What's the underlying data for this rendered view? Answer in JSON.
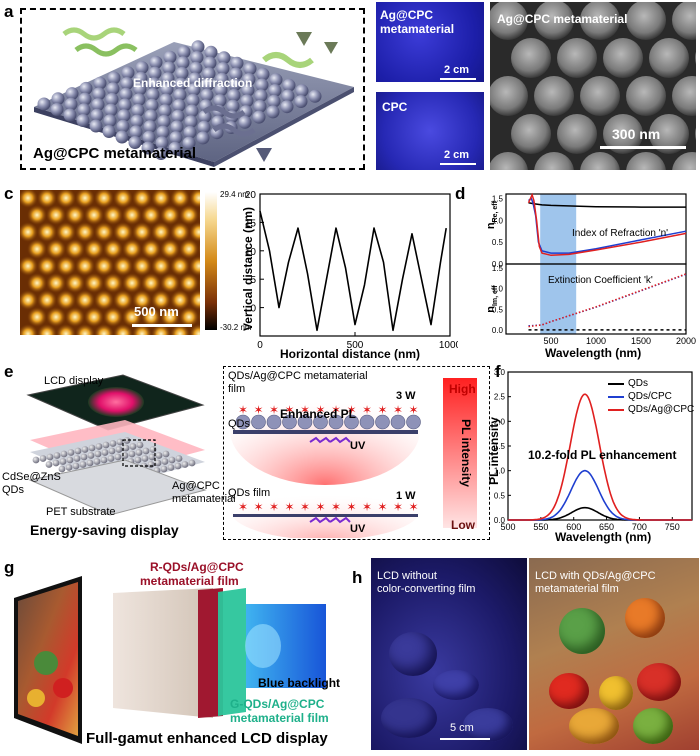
{
  "panels": {
    "a": {
      "label": "a",
      "caption": "Ag@CPC metamaterial",
      "note": "Enhanced diffraction"
    },
    "b": {
      "label": "b",
      "photo1_title": "Ag@CPC\nmetamaterial",
      "photo1_title_l1": "Ag@CPC",
      "photo1_title_l2": "metamaterial",
      "photo1_scale": "2 cm",
      "photo2_title": "CPC",
      "photo2_scale": "2 cm",
      "sem_title": "Ag@CPC metamaterial",
      "sem_scale": "300 nm"
    },
    "c": {
      "label": "c",
      "afm_scale": "500 nm",
      "colorbar_max": "29.4 nm",
      "colorbar_min": "-30.2 nm",
      "xlabel": "Horizontal distance (nm)",
      "ylabel": "Vertical distance (nm)"
    },
    "d": {
      "label": "d",
      "top_ylabel": "n",
      "top_ylabel_sub": "Re, eff",
      "bottom_ylabel": "n",
      "bottom_ylabel_sub": "Im, eff",
      "top_annot": "Index of Refraction 'n'",
      "bottom_annot": "Extinction Coefficient 'k'",
      "xlabel": "Wavelength (nm)"
    },
    "e": {
      "label": "e",
      "lcd": "LCD display",
      "qds_l1": "CdSe@ZnS",
      "qds_l2": "QDs",
      "agcpc_l1": "Ag@CPC",
      "agcpc_l2": "metamaterial",
      "pet": "PET substrate",
      "caption": "Energy-saving display",
      "film_title_l1": "QDs/Ag@CPC metamaterial",
      "film_title_l2": "film",
      "power_high": "3 W",
      "enhanced_pl": "Enhanced PL",
      "qds_label": "QDs",
      "uv1": "UV",
      "qds_film": "QDs film",
      "power_low": "1 W",
      "uv2": "UV",
      "bar_high": "High",
      "bar_low": "Low",
      "bar_title": "PL intensity"
    },
    "f": {
      "label": "f",
      "annot": "10.2-fold PL enhancement",
      "xlabel": "Wavelength (nm)",
      "ylabel": "PL intensity"
    },
    "g": {
      "label": "g",
      "r_film_l1": "R-QDs/Ag@CPC",
      "r_film_l2": "metamaterial film",
      "backlight": "Blue backlight",
      "g_film_l1": "G-QDs/Ag@CPC",
      "g_film_l2": "metamaterial film",
      "caption": "Full-gamut enhanced LCD display"
    },
    "h": {
      "label": "h",
      "left_l1": "LCD without",
      "left_l2": "color-converting film",
      "right_l1": "LCD with QDs/Ag@CPC",
      "right_l2": "metamaterial film",
      "scale": "5 cm"
    }
  },
  "chart_data": [
    {
      "panel": "c",
      "type": "line",
      "x": [
        0,
        50,
        100,
        150,
        200,
        250,
        300,
        350,
        400,
        450,
        500,
        550,
        600,
        650,
        700,
        750,
        800,
        850,
        900,
        950,
        980
      ],
      "y": [
        17,
        10,
        0,
        8,
        14,
        6,
        -4,
        5,
        14,
        7,
        -3,
        4,
        14,
        8,
        -4,
        5,
        13,
        5,
        -3,
        8,
        14
      ],
      "xlim": [
        0,
        1000
      ],
      "ylim": [
        -5,
        20
      ],
      "xticks": [
        0,
        500,
        1000
      ],
      "yticks": [
        0,
        5,
        10,
        15,
        20
      ],
      "xlabel": "Horizontal distance (nm)",
      "ylabel": "Vertical distance (nm)"
    },
    {
      "panel": "d-top",
      "type": "line",
      "xlim": [
        0,
        2000
      ],
      "ylim": [
        0.0,
        1.6
      ],
      "yticks": [
        0.0,
        0.5,
        1.0,
        1.5
      ],
      "xticks": [
        500,
        1000,
        1500,
        2000
      ],
      "highlight_band": [
        380,
        780
      ],
      "series": [
        {
          "color": "#000000",
          "x": [
            250,
            300,
            400,
            500,
            1000,
            1500,
            2000
          ],
          "y": [
            1.4,
            1.38,
            1.35,
            1.34,
            1.31,
            1.3,
            1.3
          ]
        },
        {
          "color": "#1f3fd0",
          "x": [
            250,
            280,
            300,
            330,
            360,
            400,
            500,
            700,
            1000,
            1500,
            2000
          ],
          "y": [
            1.45,
            1.5,
            1.4,
            1.1,
            0.5,
            0.3,
            0.25,
            0.25,
            0.35,
            0.55,
            0.75
          ]
        },
        {
          "color": "#e02020",
          "x": [
            250,
            290,
            310,
            340,
            370,
            400,
            500,
            700,
            1000,
            1500,
            2000
          ],
          "y": [
            1.4,
            1.58,
            1.45,
            1.0,
            0.4,
            0.25,
            0.2,
            0.22,
            0.32,
            0.5,
            0.7
          ]
        }
      ]
    },
    {
      "panel": "d-bottom",
      "type": "line",
      "xlim": [
        0,
        2000
      ],
      "ylim": [
        -0.1,
        1.6
      ],
      "yticks": [
        0.0,
        0.5,
        1.0,
        1.5
      ],
      "xticks": [
        500,
        1000,
        1500,
        2000
      ],
      "xlabel": "Wavelength (nm)",
      "highlight_band": [
        380,
        780
      ],
      "series": [
        {
          "color": "#000000",
          "dash": true,
          "x": [
            250,
            2000
          ],
          "y": [
            0.0,
            0.0
          ]
        },
        {
          "color": "#1f3fd0",
          "dotted": true,
          "x": [
            250,
            400,
            500,
            1000,
            1500,
            2000
          ],
          "y": [
            0.1,
            0.12,
            0.2,
            0.55,
            0.95,
            1.35
          ]
        },
        {
          "color": "#e02020",
          "dotted": true,
          "x": [
            250,
            400,
            500,
            1000,
            1500,
            2000
          ],
          "y": [
            0.08,
            0.12,
            0.2,
            0.56,
            0.96,
            1.36
          ]
        }
      ]
    },
    {
      "panel": "f",
      "type": "line",
      "xlim": [
        500,
        780
      ],
      "ylim": [
        0.0,
        3.0
      ],
      "xticks": [
        500,
        550,
        600,
        650,
        700,
        750
      ],
      "yticks": [
        0.0,
        0.5,
        1.0,
        1.5,
        2.0,
        2.5,
        3.0
      ],
      "xlabel": "Wavelength (nm)",
      "ylabel": "PL intensity",
      "peak": 617,
      "series": [
        {
          "name": "QDs",
          "color": "#000000",
          "amp": 0.25,
          "width": 20
        },
        {
          "name": "QDs/CPC",
          "color": "#1f3fd0",
          "amp": 1.0,
          "width": 21
        },
        {
          "name": "QDs/Ag@CPC",
          "color": "#e02020",
          "amp": 2.55,
          "width": 22
        }
      ]
    }
  ]
}
